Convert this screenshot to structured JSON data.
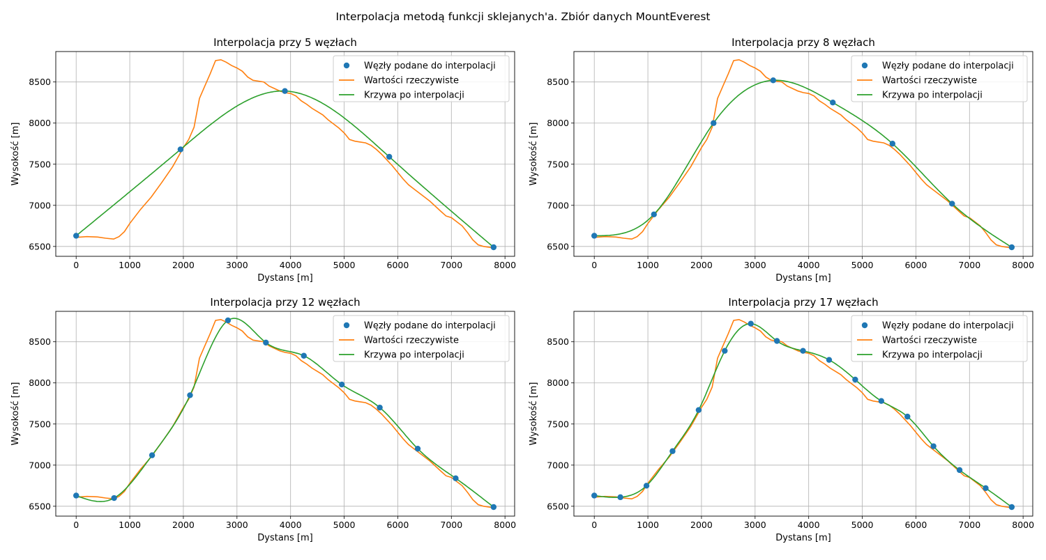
{
  "suptitle": "Interpolacja metodą funkcji sklejanych'a. Zbiór danych MountEverest",
  "colors": {
    "nodes": "#1f77b4",
    "real": "#ff7f0e",
    "interp": "#2ca02c",
    "grid": "#b0b0b0"
  },
  "legend_labels": [
    "Węzły podane do interpolacji",
    "Wartości rzeczywiste",
    "Krzywa po interpolacji"
  ],
  "real_profile": {
    "x": [
      0,
      200,
      400,
      550,
      700,
      800,
      900,
      1000,
      1200,
      1400,
      1600,
      1800,
      2000,
      2100,
      2200,
      2300,
      2400,
      2500,
      2600,
      2700,
      2800,
      2900,
      3000,
      3100,
      3200,
      3300,
      3400,
      3500,
      3600,
      3700,
      3800,
      3900,
      4000,
      4100,
      4200,
      4300,
      4400,
      4500,
      4600,
      4700,
      4800,
      4900,
      5000,
      5100,
      5200,
      5300,
      5400,
      5500,
      5600,
      5700,
      5800,
      5900,
      6000,
      6100,
      6200,
      6300,
      6400,
      6500,
      6600,
      6700,
      6800,
      6900,
      7000,
      7100,
      7200,
      7300,
      7400,
      7500,
      7600,
      7700,
      7800
    ],
    "y": [
      6610,
      6620,
      6615,
      6600,
      6590,
      6620,
      6680,
      6780,
      6950,
      7100,
      7280,
      7470,
      7700,
      7800,
      7950,
      8300,
      8450,
      8600,
      8760,
      8770,
      8740,
      8700,
      8670,
      8630,
      8560,
      8520,
      8510,
      8500,
      8450,
      8420,
      8390,
      8370,
      8360,
      8330,
      8270,
      8230,
      8180,
      8140,
      8100,
      8040,
      7990,
      7940,
      7880,
      7800,
      7780,
      7770,
      7760,
      7730,
      7680,
      7620,
      7550,
      7480,
      7400,
      7320,
      7250,
      7200,
      7150,
      7100,
      7050,
      6990,
      6930,
      6870,
      6850,
      6800,
      6750,
      6670,
      6580,
      6520,
      6500,
      6490,
      6480
    ]
  },
  "chart_data": [
    {
      "type": "line",
      "title": "Interpolacja przy 5 węzłach",
      "xlabel": "Dystans [m]",
      "ylabel": "Wysokość [m]",
      "xlim": [
        -380,
        8180
      ],
      "ylim": [
        6380,
        8870
      ],
      "xticks": [
        0,
        1000,
        2000,
        3000,
        4000,
        5000,
        6000,
        7000,
        8000
      ],
      "yticks": [
        6500,
        7000,
        7500,
        8000,
        8500
      ],
      "grid": true,
      "legend_position": "top-right",
      "nodes": {
        "x": [
          0,
          1947,
          3894,
          5841,
          7788
        ],
        "y": [
          6630,
          7680,
          8390,
          7590,
          6490
        ]
      }
    },
    {
      "type": "line",
      "title": "Interpolacja przy 8 węzłach",
      "xlabel": "Dystans [m]",
      "ylabel": "Wysokość [m]",
      "xlim": [
        -380,
        8180
      ],
      "ylim": [
        6380,
        8870
      ],
      "xticks": [
        0,
        1000,
        2000,
        3000,
        4000,
        5000,
        6000,
        7000,
        8000
      ],
      "yticks": [
        6500,
        7000,
        7500,
        8000,
        8500
      ],
      "grid": true,
      "legend_position": "top-right",
      "nodes": {
        "x": [
          0,
          1113,
          2225,
          3338,
          4450,
          5563,
          6675,
          7788
        ],
        "y": [
          6630,
          6890,
          8000,
          8520,
          8250,
          7750,
          7020,
          6490
        ]
      }
    },
    {
      "type": "line",
      "title": "Interpolacja przy 12 węzłach",
      "xlabel": "Dystans [m]",
      "ylabel": "Wysokość [m]",
      "xlim": [
        -380,
        8180
      ],
      "ylim": [
        6380,
        8870
      ],
      "xticks": [
        0,
        1000,
        2000,
        3000,
        4000,
        5000,
        6000,
        7000,
        8000
      ],
      "yticks": [
        6500,
        7000,
        7500,
        8000,
        8500
      ],
      "grid": true,
      "legend_position": "top-right",
      "nodes": {
        "x": [
          0,
          708,
          1416,
          2124,
          2832,
          3540,
          4248,
          4956,
          5664,
          6372,
          7080,
          7788
        ],
        "y": [
          6630,
          6600,
          7120,
          7850,
          8760,
          8490,
          8330,
          7980,
          7700,
          7200,
          6840,
          6490
        ]
      }
    },
    {
      "type": "line",
      "title": "Interpolacja przy 17 węzłach",
      "xlabel": "Dystans [m]",
      "ylabel": "Wysokość [m]",
      "xlim": [
        -380,
        8180
      ],
      "ylim": [
        6380,
        8870
      ],
      "xticks": [
        0,
        1000,
        2000,
        3000,
        4000,
        5000,
        6000,
        7000,
        8000
      ],
      "yticks": [
        6500,
        7000,
        7500,
        8000,
        8500
      ],
      "grid": true,
      "legend_position": "top-right",
      "nodes": {
        "x": [
          0,
          487,
          974,
          1460,
          1947,
          2434,
          2921,
          3408,
          3894,
          4381,
          4868,
          5355,
          5842,
          6328,
          6815,
          7302,
          7788
        ],
        "y": [
          6630,
          6610,
          6750,
          7170,
          7670,
          8390,
          8720,
          8510,
          8390,
          8280,
          8040,
          7780,
          7590,
          7230,
          6940,
          6720,
          6490
        ]
      }
    }
  ]
}
